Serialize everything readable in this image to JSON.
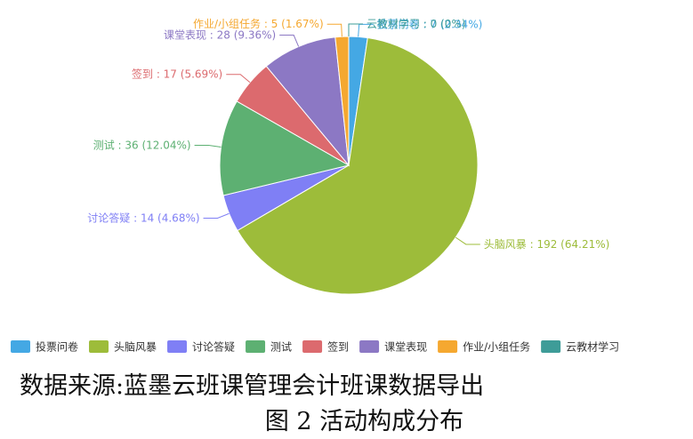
{
  "chart_data": {
    "type": "pie",
    "title": "",
    "series": [
      {
        "name": "投票问卷",
        "value": 7,
        "percent": "2.34%",
        "color": "#44A8E4"
      },
      {
        "name": "头脑风暴",
        "value": 192,
        "percent": "64.21%",
        "color": "#9DBC3A"
      },
      {
        "name": "讨论答疑",
        "value": 14,
        "percent": "4.68%",
        "color": "#7F7FF5"
      },
      {
        "name": "测试",
        "value": 36,
        "percent": "12.04%",
        "color": "#5DB072"
      },
      {
        "name": "签到",
        "value": 17,
        "percent": "5.69%",
        "color": "#DC6A6E"
      },
      {
        "name": "课堂表现",
        "value": 28,
        "percent": "9.36%",
        "color": "#8C78C4"
      },
      {
        "name": "作业/小组任务",
        "value": 5,
        "percent": "1.67%",
        "color": "#F5A830"
      },
      {
        "name": "云教材学习",
        "value": 0,
        "percent": "0%",
        "color": "#3E9C98"
      }
    ],
    "legend_position": "bottom"
  },
  "source_text": "数据来源:蓝墨云班课管理会计班课数据导出",
  "caption": "图 2 活动构成分布"
}
